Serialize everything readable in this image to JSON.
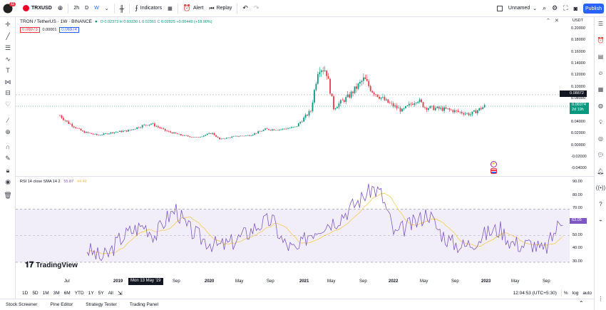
{
  "toolbar": {
    "symbol": "TRXUSD",
    "interval_2h": "2h",
    "interval_d": "D",
    "interval_w": "W",
    "indicators": "Indicators",
    "alert": "Alert",
    "replay": "Replay",
    "layout_name": "Unnamed",
    "publish": "Publish",
    "avatar_badge": "11"
  },
  "legend": {
    "title": "TRON / TetherUS · 1W · BINANCE",
    "ohlc": "O 0.02373  H 0.03330  L 0.02361  C 0.02825  +0.00449 (+18.90%)",
    "bid": "0.06973",
    "spread": "0.00001",
    "ask": "0.06974"
  },
  "currency": "USDT",
  "price_axis": [
    "0.20000",
    "0.18000",
    "0.16000",
    "0.14000",
    "0.12000",
    "0.10000",
    "0.08000",
    "0.06000",
    "0.04000",
    "0.02000",
    "0.00000",
    "-0.02000",
    "-0.04000"
  ],
  "price_labels": {
    "crosshair": "0.08872",
    "last": "0.06974",
    "countdown": "2d 19h"
  },
  "rsi": {
    "legend": "RSI 14 close SMA 14 2",
    "value1": "55.87",
    "value2": "44.48",
    "axis": [
      "90.00",
      "80.00",
      "70.00",
      "60.00",
      "50.00",
      "40.00",
      "30.00"
    ],
    "last": "63.05"
  },
  "time_axis": [
    "Jul",
    "2019",
    "Sep",
    "2020",
    "May",
    "Sep",
    "2021",
    "May",
    "Sep",
    "2022",
    "May",
    "Sep",
    "2023",
    "May",
    "Sep"
  ],
  "time_crosshair": "Mon 13 May '19",
  "ranges": [
    "1D",
    "5D",
    "1M",
    "3M",
    "6M",
    "YTD",
    "1Y",
    "5Y",
    "All"
  ],
  "clock": "12:04:53 (UTC+5:30)",
  "axis_opts": [
    "%",
    "log",
    "auto"
  ],
  "footer_tabs": [
    "Stock Screener",
    "Pine Editor",
    "Strategy Tester",
    "Trading Panel"
  ],
  "brand": "TradingView",
  "chart_data": {
    "type": "candlestick",
    "symbol": "TRON / TetherUS",
    "timeframe": "1W",
    "ylim": [
      -0.04,
      0.2
    ],
    "approx_close_path": [
      [
        "2018-06",
        0.052
      ],
      [
        "2018-07",
        0.04
      ],
      [
        "2018-09",
        0.024
      ],
      [
        "2018-11",
        0.018
      ],
      [
        "2019-01",
        0.023
      ],
      [
        "2019-03",
        0.026
      ],
      [
        "2019-05",
        0.035
      ],
      [
        "2019-06",
        0.038
      ],
      [
        "2019-08",
        0.025
      ],
      [
        "2019-10",
        0.018
      ],
      [
        "2019-12",
        0.014
      ],
      [
        "2020-02",
        0.022
      ],
      [
        "2020-03",
        0.011
      ],
      [
        "2020-05",
        0.016
      ],
      [
        "2020-07",
        0.018
      ],
      [
        "2020-09",
        0.028
      ],
      [
        "2020-11",
        0.028
      ],
      [
        "2021-01",
        0.032
      ],
      [
        "2021-03",
        0.06
      ],
      [
        "2021-04",
        0.135
      ],
      [
        "2021-05",
        0.13
      ],
      [
        "2021-06",
        0.065
      ],
      [
        "2021-08",
        0.085
      ],
      [
        "2021-09",
        0.1
      ],
      [
        "2021-10",
        0.115
      ],
      [
        "2021-11",
        0.095
      ],
      [
        "2022-01",
        0.075
      ],
      [
        "2022-03",
        0.06
      ],
      [
        "2022-05",
        0.08
      ],
      [
        "2022-06",
        0.066
      ],
      [
        "2022-09",
        0.062
      ],
      [
        "2022-12",
        0.054
      ],
      [
        "2023-02",
        0.069
      ]
    ],
    "rsi_range": [
      30,
      90
    ],
    "rsi_band": [
      30,
      70
    ]
  }
}
